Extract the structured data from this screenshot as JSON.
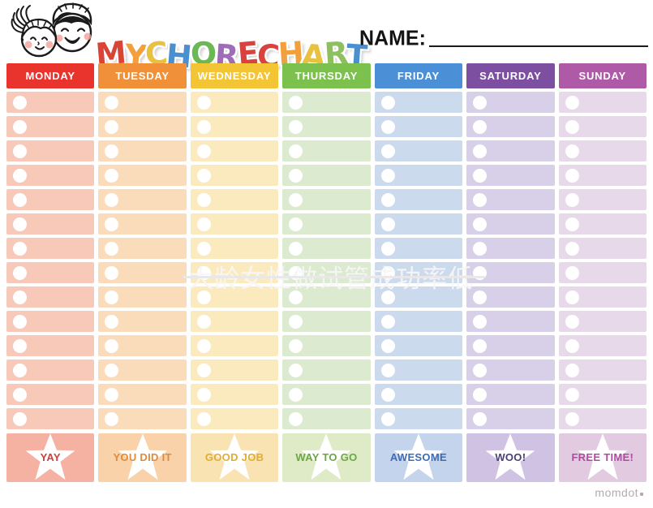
{
  "header": {
    "title_text": "MY CHORE CHART",
    "title_letters": [
      {
        "ch": "M",
        "color": "#d94436"
      },
      {
        "ch": "Y",
        "color": "#f2a03d"
      },
      {
        "ch": " "
      },
      {
        "ch": "C",
        "color": "#e7c13f"
      },
      {
        "ch": "H",
        "color": "#4a90d0"
      },
      {
        "ch": "O",
        "color": "#6cb854"
      },
      {
        "ch": "R",
        "color": "#9e6cb8"
      },
      {
        "ch": "E",
        "color": "#d84340"
      },
      {
        "ch": " "
      },
      {
        "ch": "C",
        "color": "#d84340"
      },
      {
        "ch": "H",
        "color": "#f2a03d"
      },
      {
        "ch": "A",
        "color": "#e7c13f"
      },
      {
        "ch": "R",
        "color": "#8fc060"
      },
      {
        "ch": "T",
        "color": "#4a90d0"
      }
    ],
    "name_label": "NAME:",
    "kids_illustration": "two-kids-faces-icon"
  },
  "table": {
    "rows_per_day": 14,
    "checkbox_icon": "circle-checkbox",
    "days": [
      {
        "label": "MONDAY",
        "header_color": "#e8342d",
        "row_color": "#f8c8b9",
        "footer_color": "#f5b2a3",
        "footer_label": "YAY",
        "footer_text_color": "#cf3f3c"
      },
      {
        "label": "TUESDAY",
        "header_color": "#f09038",
        "row_color": "#fbdcba",
        "footer_color": "#f9d2a9",
        "footer_label": "YOU DID IT",
        "footer_text_color": "#e08a3c"
      },
      {
        "label": "WEDNESDAY",
        "header_color": "#f3c434",
        "row_color": "#fceabf",
        "footer_color": "#fae3b2",
        "footer_label": "GOOD JOB",
        "footer_text_color": "#e2ac30"
      },
      {
        "label": "THURSDAY",
        "header_color": "#7cc04e",
        "row_color": "#dcead0",
        "footer_color": "#dfeac7",
        "footer_label": "WAY TO GO",
        "footer_text_color": "#6ba845"
      },
      {
        "label": "FRIDAY",
        "header_color": "#4b90d6",
        "row_color": "#ccdaee",
        "footer_color": "#c4d4ec",
        "footer_label": "AWESOME",
        "footer_text_color": "#3f6cb5"
      },
      {
        "label": "SATURDAY",
        "header_color": "#7c4fa0",
        "row_color": "#d8cfe8",
        "footer_color": "#cfc2e3",
        "footer_label": "WOO!",
        "footer_text_color": "#4a3f76"
      },
      {
        "label": "SUNDAY",
        "header_color": "#ae5aa6",
        "row_color": "#e7d9e9",
        "footer_color": "#e2cbe1",
        "footer_label": "FREE TIME!",
        "footer_text_color": "#b04ba3"
      }
    ]
  },
  "watermark": {
    "text": "大龄女性做试管成功率低"
  },
  "brand": {
    "text": "momdot"
  }
}
